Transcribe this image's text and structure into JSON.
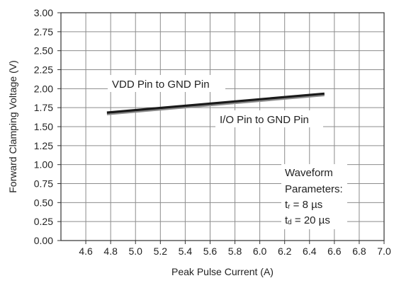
{
  "chart_data": {
    "type": "line",
    "xlabel": "Peak Pulse Current (A)",
    "ylabel": "Forward Clamping Voltage (V)",
    "xlim": [
      4.4,
      7.0
    ],
    "ylim": [
      0.0,
      3.0
    ],
    "x_ticks": [
      "4.6",
      "4.8",
      "5.0",
      "5.2",
      "5.4",
      "5.6",
      "5.8",
      "6.0",
      "6.2",
      "6.4",
      "6.6",
      "6.8",
      "7.0"
    ],
    "y_ticks": [
      "0.00",
      "0.25",
      "0.50",
      "0.75",
      "1.00",
      "1.25",
      "1.50",
      "1.75",
      "2.00",
      "2.25",
      "2.50",
      "2.75",
      "3.00"
    ],
    "grid": true,
    "series": [
      {
        "name": "VDD Pin to GND Pin",
        "color": "#1a1a1a",
        "x": [
          4.77,
          6.52
        ],
        "y": [
          1.685,
          1.935
        ]
      },
      {
        "name": "I/O Pin to GND Pin",
        "color": "#8a8a8a",
        "x": [
          4.77,
          6.52
        ],
        "y": [
          1.665,
          1.915
        ]
      }
    ],
    "annotations": {
      "vdd_label": "VDD Pin to GND Pin",
      "io_label": "I/O Pin to GND Pin",
      "waveform_title": "Waveform",
      "waveform_params": "Parameters:",
      "tr_symbol": "t",
      "tr_sub": "r",
      "tr_value": " = 8 µs",
      "td_symbol": "t",
      "td_sub": "d",
      "td_value": " = 20 µs"
    }
  }
}
